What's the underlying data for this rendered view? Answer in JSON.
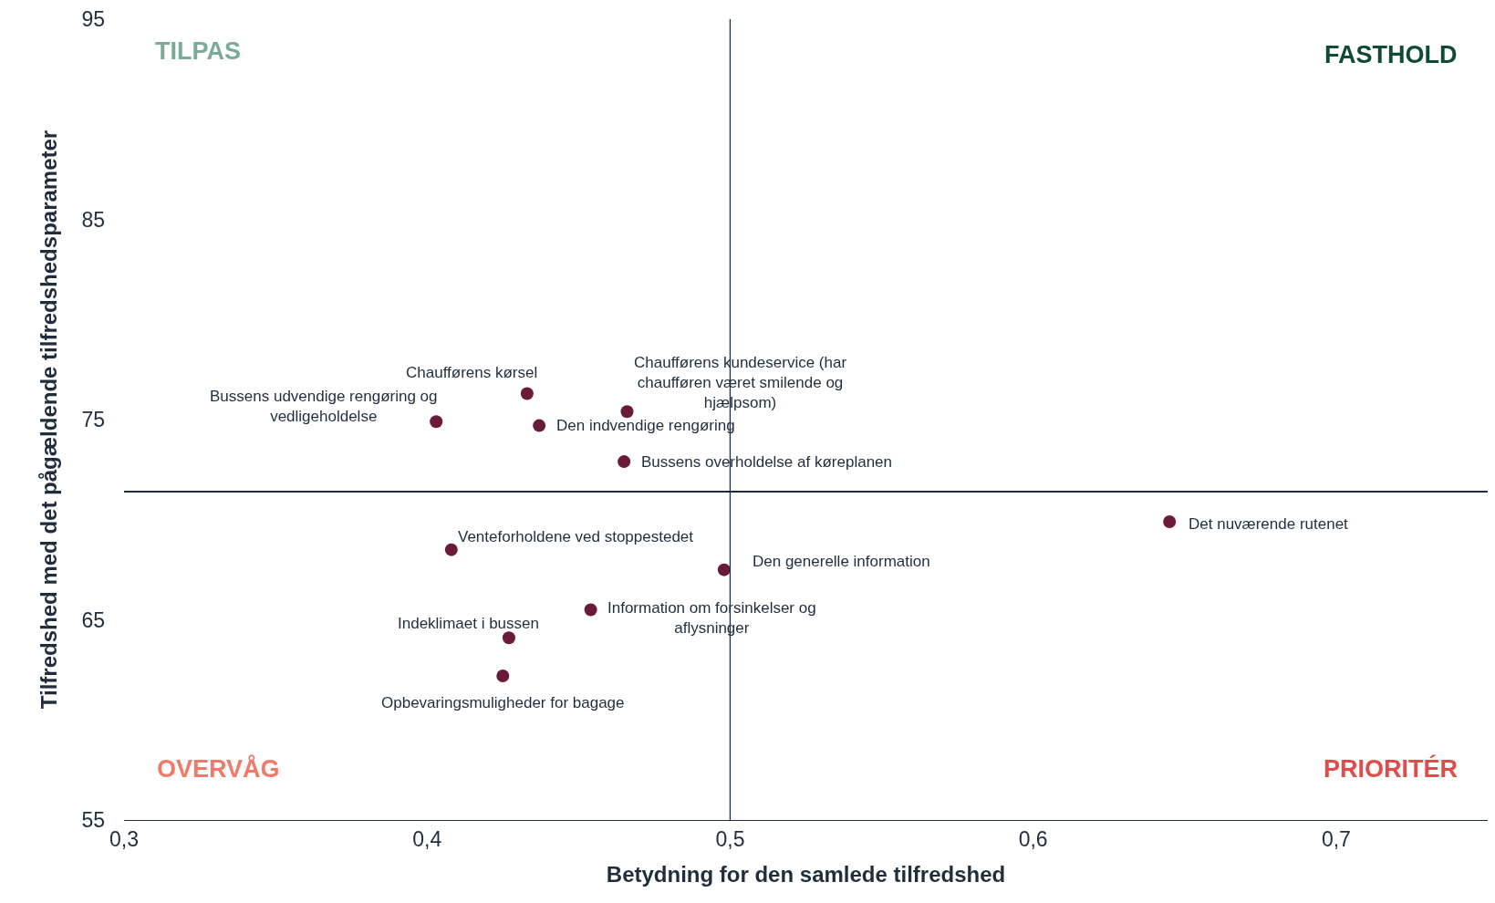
{
  "chart_data": {
    "type": "scatter",
    "xlabel": "Betydning for den samlede tilfredshed",
    "ylabel": "Tilfredshed med det pågældende tilfredshedsparameter",
    "x": [
      0.403,
      0.433,
      0.437,
      0.466,
      0.465,
      0.645,
      0.408,
      0.498,
      0.454,
      0.427,
      0.425
    ],
    "series": [
      {
        "color": "#6b1a3a",
        "values": [
          74.9,
          76.3,
          74.7,
          75.4,
          72.9,
          69.9,
          68.5,
          67.5,
          65.5,
          64.1,
          62.2
        ]
      }
    ],
    "marker": "circle",
    "xlim": [
      0.3,
      0.75
    ],
    "xticks": [
      {
        "value": 0.3,
        "label": "0,3"
      },
      {
        "value": 0.4,
        "label": "0,4"
      },
      {
        "value": 0.5,
        "label": "0,5"
      },
      {
        "value": 0.6,
        "label": "0,6"
      },
      {
        "value": 0.7,
        "label": "0,7"
      }
    ],
    "ylim": [
      55,
      95
    ],
    "yticks": [
      55,
      65,
      75,
      85,
      95
    ],
    "ref_lines": [
      {
        "axis": "x",
        "value": 0.5,
        "color": "#1f2d3d"
      },
      {
        "axis": "y",
        "value": 71.4,
        "color": "#1f2d3d"
      }
    ],
    "annotations": [
      {
        "text": "Bussens udvendige rengøring og\nvedligeholdelse",
        "x": 0.403,
        "y": 74.9
      },
      {
        "text": "Chaufførens kørsel",
        "x": 0.433,
        "y": 76.3
      },
      {
        "text": "Den indvendige rengøring",
        "x": 0.437,
        "y": 74.7
      },
      {
        "text": "Chaufførens kundeservice (har\nchaufføren været smilende og\nhjælpsom)",
        "x": 0.466,
        "y": 75.4
      },
      {
        "text": "Bussens overholdelse af køreplanen",
        "x": 0.465,
        "y": 72.9
      },
      {
        "text": "Det nuværende rutenet",
        "x": 0.645,
        "y": 69.9
      },
      {
        "text": "Venteforholdene ved stoppestedet",
        "x": 0.408,
        "y": 68.5
      },
      {
        "text": "Den generelle information",
        "x": 0.498,
        "y": 67.5
      },
      {
        "text": "Information om forsinkelser og\naflysninger",
        "x": 0.454,
        "y": 65.5
      },
      {
        "text": "Indeklimaet i bussen",
        "x": 0.427,
        "y": 64.1
      },
      {
        "text": "Opbevaringsmuligheder for bagage",
        "x": 0.425,
        "y": 62.2
      },
      "TILPAS",
      "FASTHOLD",
      "OVERVÅG",
      "PRIORITÉR"
    ]
  }
}
